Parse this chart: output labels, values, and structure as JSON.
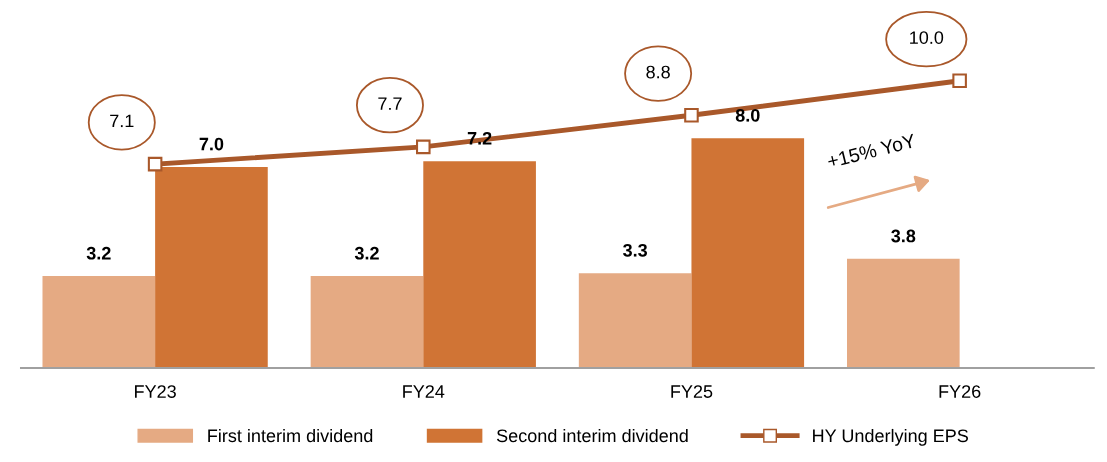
{
  "chart_data": {
    "type": "bar",
    "categories": [
      "FY23",
      "FY24",
      "FY25",
      "FY26"
    ],
    "series": [
      {
        "name": "First interim dividend",
        "color": "#e5aa83",
        "values": [
          3.2,
          3.2,
          3.3,
          3.8
        ],
        "value_labels": [
          "3.2",
          "3.2",
          "3.3",
          "3.8"
        ]
      },
      {
        "name": "Second interim dividend",
        "color": "#d07435",
        "values": [
          7.0,
          7.2,
          8.0,
          null
        ],
        "value_labels": [
          "7.0",
          "7.2",
          "8.0",
          null
        ]
      },
      {
        "name": "HY Underlying EPS",
        "type": "line",
        "color": "#a9582a",
        "marker": "square",
        "values": [
          7.1,
          7.7,
          8.8,
          10.0
        ],
        "value_labels": [
          "7.1",
          "7.7",
          "8.8",
          "10.0"
        ]
      }
    ],
    "tick_labels": "x",
    "grid": false,
    "legend": "bottom",
    "annotations": [
      "+15% YoY"
    ]
  }
}
